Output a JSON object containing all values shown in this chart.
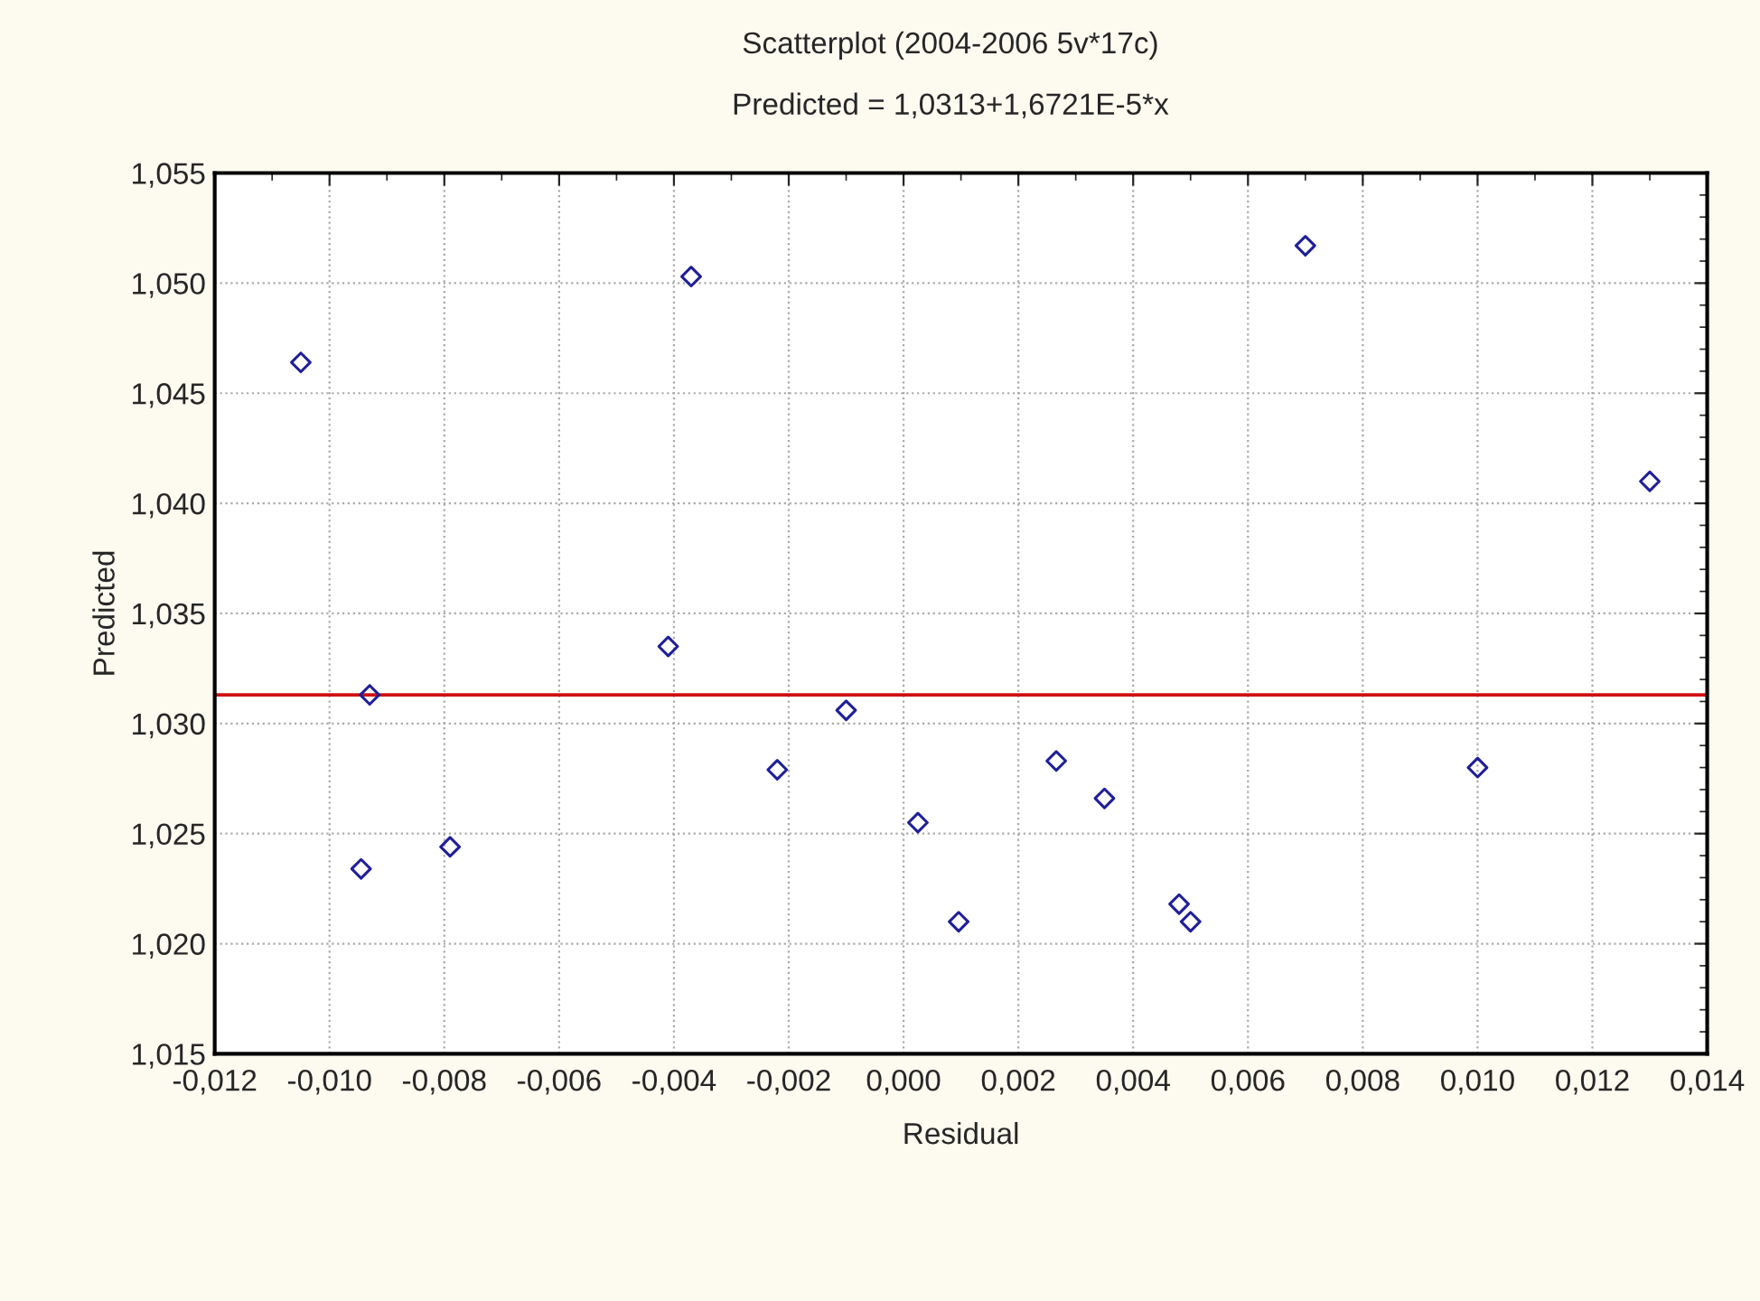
{
  "chart_data": {
    "type": "scatter",
    "title": "Scatterplot (2004-2006 5v*17c)",
    "subtitle": "Predicted = 1,0313+1,6721E-5*x",
    "xlabel": "Residual",
    "ylabel": "Predicted",
    "series": [
      {
        "color": "#1f1f9a",
        "marker": "diamond",
        "x": [
          -0.0105,
          -0.0037,
          0.007,
          0.013,
          -0.0093,
          -0.00945,
          -0.0079,
          -0.0041,
          -0.0022,
          -0.001,
          0.00025,
          0.00096,
          0.00266,
          0.0035,
          0.0048,
          0.005,
          0.01
        ],
        "values": [
          1.0464,
          1.0503,
          1.0517,
          1.041,
          1.0313,
          1.0234,
          1.0244,
          1.0335,
          1.0279,
          1.0306,
          1.0255,
          1.021,
          1.0283,
          1.0266,
          1.0218,
          1.021,
          1.028
        ]
      },
      {
        "type": "line",
        "color": "#d01010",
        "line_style": "solid",
        "x": [
          -0.012,
          0.014
        ],
        "values": [
          1.0313,
          1.0313
        ]
      }
    ],
    "xlim": [
      -0.012,
      0.014
    ],
    "xticks": [
      {
        "value": -0.012,
        "label": "-0,012"
      },
      {
        "value": -0.01,
        "label": "-0,010"
      },
      {
        "value": -0.008,
        "label": "-0,008"
      },
      {
        "value": -0.006,
        "label": "-0,006"
      },
      {
        "value": -0.004,
        "label": "-0,004"
      },
      {
        "value": -0.002,
        "label": "-0,002"
      },
      {
        "value": 0.0,
        "label": "0,000"
      },
      {
        "value": 0.002,
        "label": "0,002"
      },
      {
        "value": 0.004,
        "label": "0,004"
      },
      {
        "value": 0.006,
        "label": "0,006"
      },
      {
        "value": 0.008,
        "label": "0,008"
      },
      {
        "value": 0.01,
        "label": "0,010"
      },
      {
        "value": 0.012,
        "label": "0,012"
      },
      {
        "value": 0.014,
        "label": "0,014"
      }
    ],
    "ylim": [
      1.015,
      1.055
    ],
    "yticks": [
      {
        "value": 1.015,
        "label": "1,015"
      },
      {
        "value": 1.02,
        "label": "1,020"
      },
      {
        "value": 1.025,
        "label": "1,025"
      },
      {
        "value": 1.03,
        "label": "1,030"
      },
      {
        "value": 1.035,
        "label": "1,035"
      },
      {
        "value": 1.04,
        "label": "1,040"
      },
      {
        "value": 1.045,
        "label": "1,045"
      },
      {
        "value": 1.05,
        "label": "1,050"
      },
      {
        "value": 1.055,
        "label": "1,055"
      }
    ],
    "grid": true,
    "legend": false
  }
}
